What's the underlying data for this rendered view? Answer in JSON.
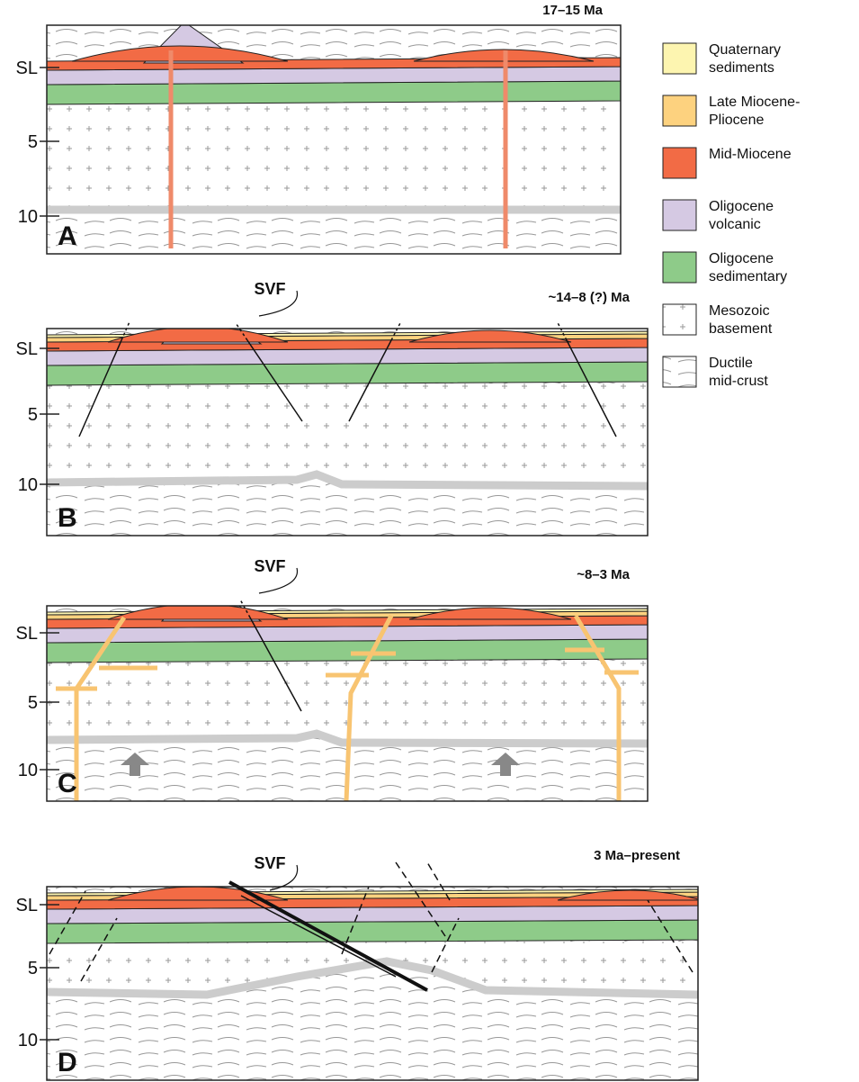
{
  "panels": [
    {
      "label": "A",
      "age": "17–15 Ma",
      "depths": [
        "SL",
        "5",
        "10"
      ]
    },
    {
      "label": "B",
      "age": "~14–8 (?) Ma",
      "fault": "SVF",
      "depths": [
        "SL",
        "5",
        "10"
      ]
    },
    {
      "label": "C",
      "age": "~8–3 Ma",
      "fault": "SVF",
      "depths": [
        "SL",
        "5",
        "10"
      ]
    },
    {
      "label": "D",
      "age": "3 Ma–present",
      "fault": "SVF",
      "depths": [
        "SL",
        "5",
        "10"
      ]
    }
  ],
  "legend": [
    {
      "lines": [
        "Quaternary",
        "sediments"
      ]
    },
    {
      "lines": [
        "Late Miocene-",
        "Pliocene"
      ]
    },
    {
      "lines": [
        "Mid-Miocene"
      ]
    },
    {
      "lines": [
        "Oligocene",
        "volcanic"
      ]
    },
    {
      "lines": [
        "Oligocene",
        "sedimentary"
      ]
    },
    {
      "lines": [
        "Mesozoic",
        "basement"
      ]
    },
    {
      "lines": [
        "Ductile",
        "mid-crust"
      ]
    }
  ]
}
